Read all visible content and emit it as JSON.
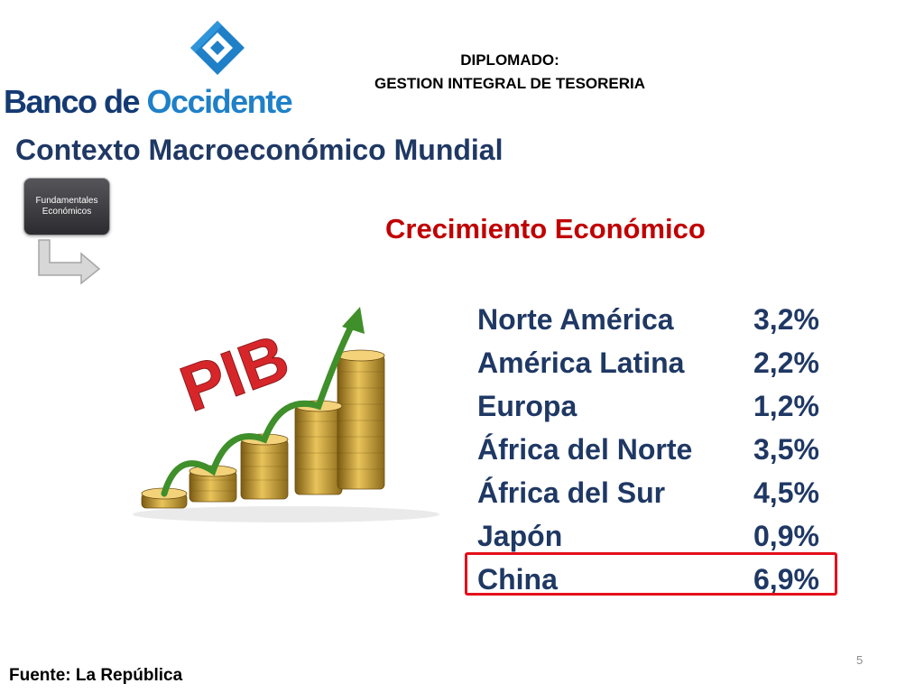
{
  "logo": {
    "brand_part1": "Banco de ",
    "brand_part2": "Occidente",
    "icon": "banco-de-occidente-diamond-logo-icon",
    "colors": {
      "dark_blue": "#143a73",
      "light_blue": "#1f80c8"
    }
  },
  "header": {
    "line1": "DIPLOMADO:",
    "line2": "GESTION INTEGRAL DE TESORERIA"
  },
  "slide": {
    "heading": "Contexto Macroeconómico Mundial",
    "subheading": "Crecimiento Económico",
    "box": {
      "line1": "Fundamentales",
      "line2": "Económicos"
    },
    "illustration": {
      "icon": "pib-growth-coins-illustration",
      "text": "PIB"
    }
  },
  "growth_table": {
    "rows": [
      {
        "region": "Norte América",
        "value": "3,2%"
      },
      {
        "region": "América Latina",
        "value": "2,2%"
      },
      {
        "region": "Europa",
        "value": "1,2%"
      },
      {
        "region": "África del Norte",
        "value": "3,5%"
      },
      {
        "region": "África del Sur",
        "value": "4,5%"
      },
      {
        "region": "Japón",
        "value": "0,9%"
      },
      {
        "region": "China",
        "value": "6,9%"
      }
    ],
    "highlighted_region": "China"
  },
  "colors": {
    "heading": "#1f3864",
    "subheading": "#c00000",
    "highlight": "#e3101a"
  },
  "footer": {
    "source": "Fuente: La República",
    "page_number": "5"
  }
}
